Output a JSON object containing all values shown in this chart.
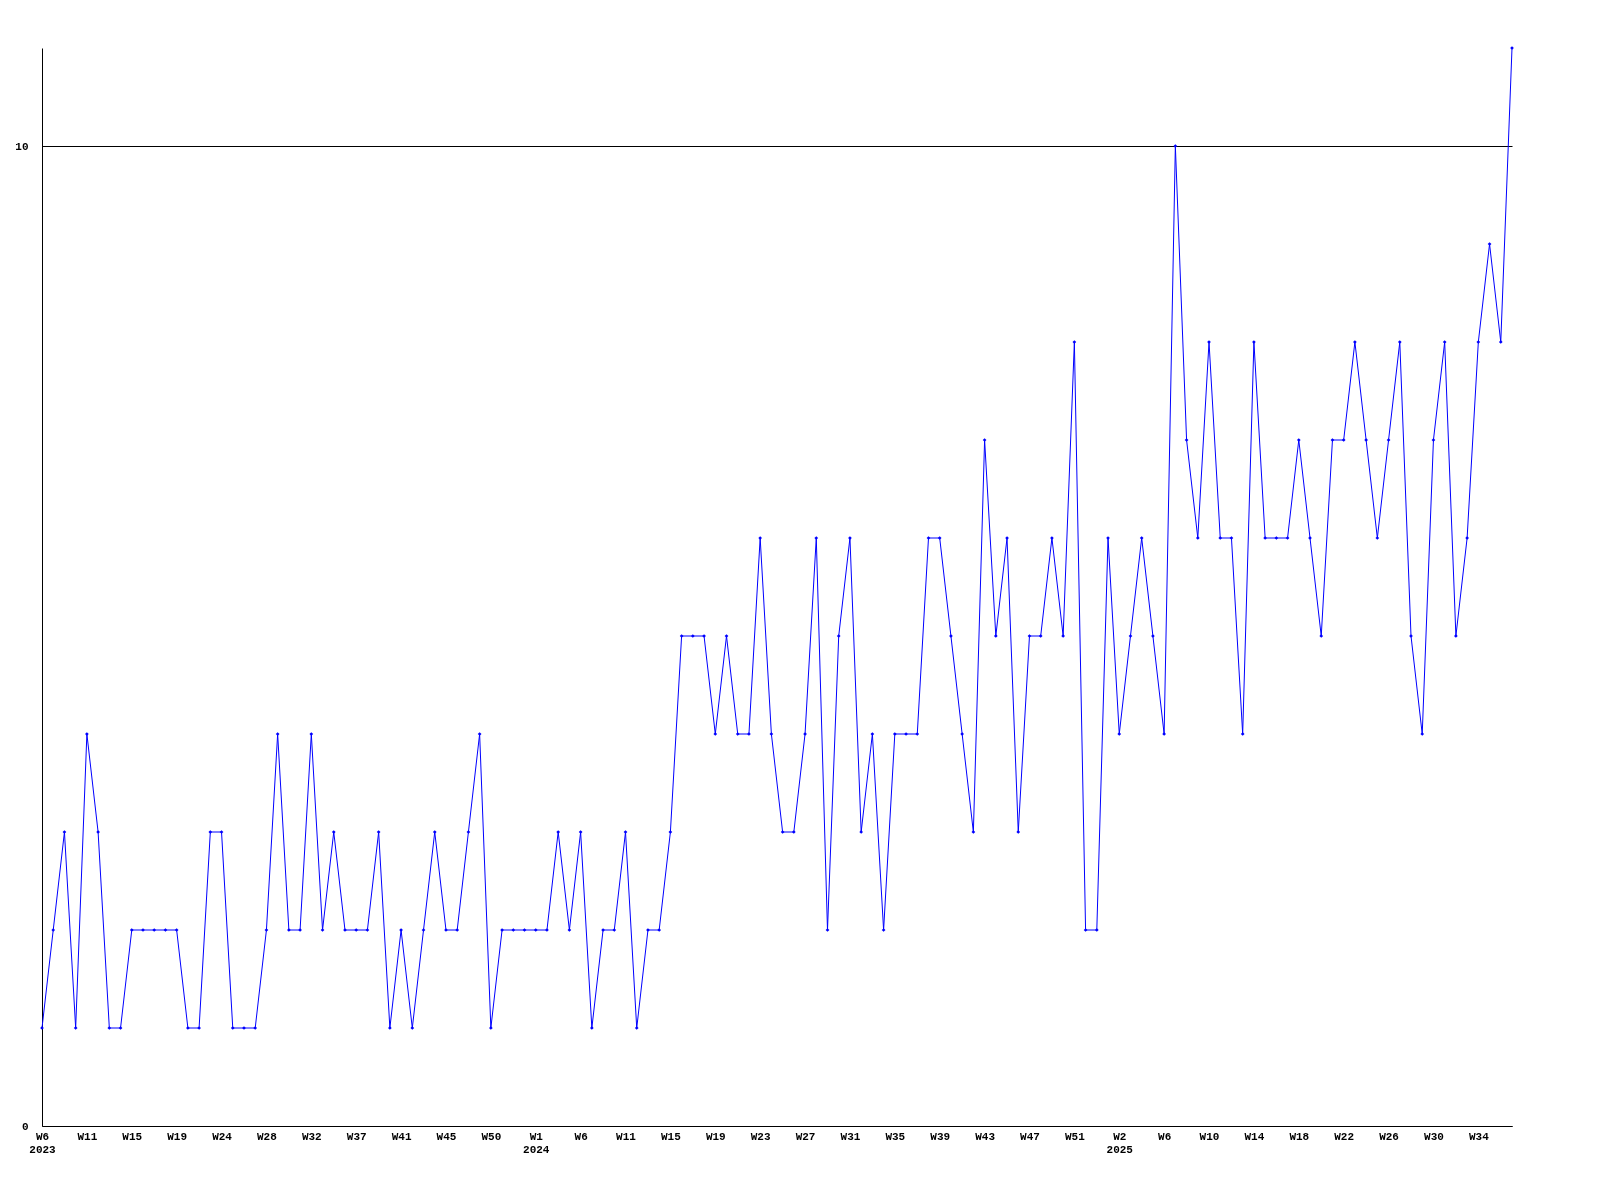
{
  "chart_data": {
    "type": "line",
    "categories": [
      "W6\n2023",
      null,
      null,
      null,
      "W11",
      null,
      null,
      null,
      "W15",
      null,
      null,
      null,
      "W19",
      null,
      null,
      null,
      "W24",
      null,
      null,
      null,
      "W28",
      null,
      null,
      null,
      "W32",
      null,
      null,
      null,
      "W37",
      null,
      null,
      null,
      "W41",
      null,
      null,
      null,
      "W45",
      null,
      null,
      null,
      "W50",
      null,
      null,
      null,
      "W1\n2024",
      null,
      null,
      null,
      "W6",
      null,
      null,
      null,
      "W11",
      null,
      null,
      null,
      "W15",
      null,
      null,
      null,
      "W19",
      null,
      null,
      null,
      "W23",
      null,
      null,
      null,
      "W27",
      null,
      null,
      null,
      "W31",
      null,
      null,
      null,
      "W35",
      null,
      null,
      null,
      "W39",
      null,
      null,
      null,
      "W43",
      null,
      null,
      null,
      "W47",
      null,
      null,
      null,
      "W51",
      null,
      null,
      null,
      "W2\n2025",
      null,
      null,
      null,
      "W6",
      null,
      null,
      null,
      "W10",
      null,
      null,
      null,
      "W14",
      null,
      null,
      null,
      "W18",
      null,
      null,
      null,
      "W22",
      null,
      null,
      null,
      "W26",
      null,
      null,
      null,
      "W30",
      null,
      null,
      null,
      "W34",
      null,
      null,
      null
    ],
    "series": [
      {
        "color": "#0000ff",
        "values": [
          1,
          2,
          3,
          1,
          4,
          3,
          1,
          1,
          2,
          2,
          2,
          2,
          2,
          1,
          1,
          3,
          3,
          1,
          1,
          1,
          2,
          4,
          2,
          2,
          4,
          2,
          3,
          2,
          2,
          2,
          3,
          1,
          2,
          1,
          2,
          3,
          2,
          2,
          3,
          4,
          1,
          2,
          2,
          2,
          2,
          2,
          3,
          2,
          3,
          1,
          2,
          2,
          3,
          1,
          2,
          2,
          3,
          5,
          5,
          5,
          4,
          5,
          4,
          4,
          6,
          4,
          3,
          3,
          4,
          6,
          2,
          5,
          6,
          3,
          4,
          2,
          4,
          4,
          4,
          6,
          6,
          5,
          4,
          3,
          7,
          5,
          6,
          3,
          5,
          5,
          6,
          5,
          8,
          2,
          2,
          6,
          4,
          5,
          6,
          5,
          4,
          10,
          7,
          6,
          8,
          6,
          6,
          4,
          8,
          6,
          6,
          6,
          7,
          6,
          5,
          7,
          7,
          8,
          7,
          6,
          7,
          8,
          5,
          4,
          7,
          8,
          5,
          6,
          8,
          9,
          8,
          11
        ]
      }
    ],
    "ylim": [
      0,
      11
    ],
    "yticks": [
      0,
      10
    ],
    "grid": "y",
    "marker": "diamond",
    "line_style": "solid"
  }
}
